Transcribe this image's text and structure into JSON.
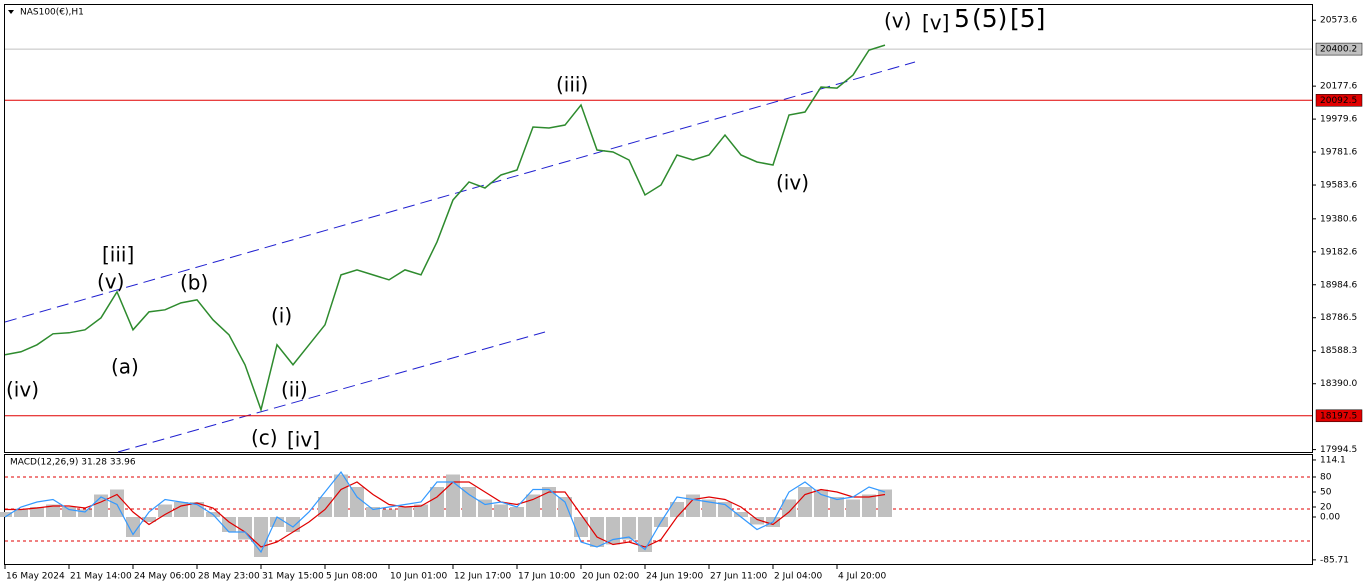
{
  "chart_data": [
    {
      "type": "line",
      "title": "NAS100(€),H1",
      "x": [
        "16 May 2024",
        null,
        null,
        null,
        "21 May 14:00",
        null,
        null,
        null,
        "24 May 06:00",
        null,
        null,
        null,
        "28 May 23:00",
        null,
        null,
        null,
        "31 May 15:00",
        null,
        null,
        null,
        "5 Jun 08:00",
        null,
        null,
        null,
        "10 Jun 01:00",
        null,
        null,
        null,
        "12 Jun 17:00",
        null,
        null,
        null,
        "17 Jun 10:00",
        null,
        null,
        null,
        "20 Jun 02:00",
        null,
        null,
        null,
        "24 Jun 19:00",
        null,
        null,
        null,
        "27 Jun 11:00",
        null,
        null,
        null,
        "2 Jul 04:00",
        null,
        null,
        null,
        "4 Jul 20:00",
        null,
        null,
        null
      ],
      "series": [
        {
          "color": "#2e8b2e",
          "values": [
            18564,
            18582,
            18624,
            18690,
            18696,
            18714,
            18786,
            18942,
            18714,
            18822,
            18834,
            18876,
            18894,
            18774,
            18684,
            18504,
            18234,
            18624,
            18504,
            18624,
            18744,
            19044,
            19074,
            19044,
            19014,
            19074,
            19044,
            19242,
            19494,
            19602,
            19566,
            19644,
            19674,
            19932,
            19926,
            19944,
            20064,
            19794,
            19782,
            19734,
            19524,
            19584,
            19764,
            19734,
            19764,
            19884,
            19764,
            19722,
            19704,
            20004,
            20022,
            20172,
            20166,
            20244,
            20394,
            20424
          ]
        }
      ],
      "ylim": [
        17980,
        20665
      ],
      "yticks": [
        20573.6,
        20177.6,
        19979.6,
        19781.6,
        19583.6,
        19380.6,
        19182.6,
        18984.6,
        18786.5,
        18588.3,
        {
          "value": 18390,
          "label": "18390.0"
        },
        17994.5
      ],
      "levels": [
        {
          "value": 20400.2,
          "color": "#c0c0c0"
        },
        {
          "value": 20092.5,
          "color": "#e00000"
        },
        {
          "value": 18197.5,
          "color": "#e00000"
        }
      ],
      "annotations": [
        {
          "text": "(iv)",
          "color": "#1010e0"
        },
        {
          "text": "(v)",
          "color": "#1010e0"
        },
        {
          "text": "[iii]",
          "color": "#1a8a1a"
        },
        {
          "text": "(a)",
          "color": "#1010e0"
        },
        {
          "text": "(b)",
          "color": "#1010e0"
        },
        {
          "text": "(i)",
          "color": "#1010e0"
        },
        {
          "text": "(ii)",
          "color": "#1010e0"
        },
        {
          "text": "(c)",
          "color": "#1010e0"
        },
        {
          "text": "[iv]",
          "color": "#1a8a1a"
        },
        {
          "text": "(iii)",
          "color": "#1010e0"
        },
        {
          "text": "(iv)",
          "color": "#1010e0"
        },
        {
          "text": "(v)",
          "color": "#1010e0"
        },
        {
          "text": "[v]",
          "color": "#1a8a1a"
        },
        {
          "text": "5",
          "color": "#1010e0"
        },
        {
          "text": "(5)",
          "color": "#e00000"
        },
        {
          "text": "[5]",
          "color": "#000000"
        }
      ]
    },
    {
      "type": "macd",
      "title": "MACD(12,26,9) 31.28 33.96",
      "series": [
        {
          "color": "#c0c0c0",
          "values": [
            10,
            15,
            20,
            25,
            20,
            15,
            45,
            55,
            -40,
            -10,
            25,
            30,
            30,
            10,
            -30,
            -45,
            -80,
            -20,
            -30,
            0,
            40,
            85,
            60,
            20,
            15,
            20,
            25,
            60,
            85,
            60,
            35,
            25,
            20,
            45,
            60,
            40,
            -40,
            -60,
            -55,
            -45,
            -70,
            -20,
            30,
            45,
            35,
            30,
            10,
            -15,
            -20,
            35,
            60,
            55,
            40,
            35,
            45,
            55
          ]
        },
        {
          "color": "#e00000",
          "values": [
            15,
            15,
            18,
            22,
            22,
            18,
            30,
            45,
            10,
            -15,
            5,
            22,
            28,
            18,
            -10,
            -30,
            -60,
            -50,
            -30,
            -10,
            15,
            55,
            70,
            45,
            25,
            20,
            22,
            40,
            70,
            70,
            50,
            30,
            25,
            35,
            50,
            50,
            5,
            -40,
            -55,
            -50,
            -60,
            -45,
            0,
            35,
            40,
            35,
            20,
            -5,
            -15,
            10,
            45,
            55,
            50,
            40,
            40,
            45
          ]
        },
        {
          "color": "#3399ff",
          "values": [
            0,
            20,
            30,
            35,
            15,
            10,
            40,
            25,
            -35,
            10,
            35,
            30,
            25,
            5,
            -30,
            -30,
            -70,
            0,
            -20,
            10,
            50,
            90,
            40,
            15,
            20,
            25,
            30,
            70,
            70,
            45,
            25,
            30,
            20,
            55,
            55,
            30,
            -50,
            -60,
            -45,
            -40,
            -65,
            -10,
            40,
            35,
            30,
            25,
            0,
            -25,
            -10,
            50,
            70,
            45,
            35,
            40,
            60,
            50
          ]
        }
      ],
      "ylim": [
        -92,
        124
      ],
      "yticks": [
        114.1,
        80,
        50,
        {
          "value": 0,
          "label": "0.00"
        },
        20,
        -85.71
      ]
    }
  ]
}
